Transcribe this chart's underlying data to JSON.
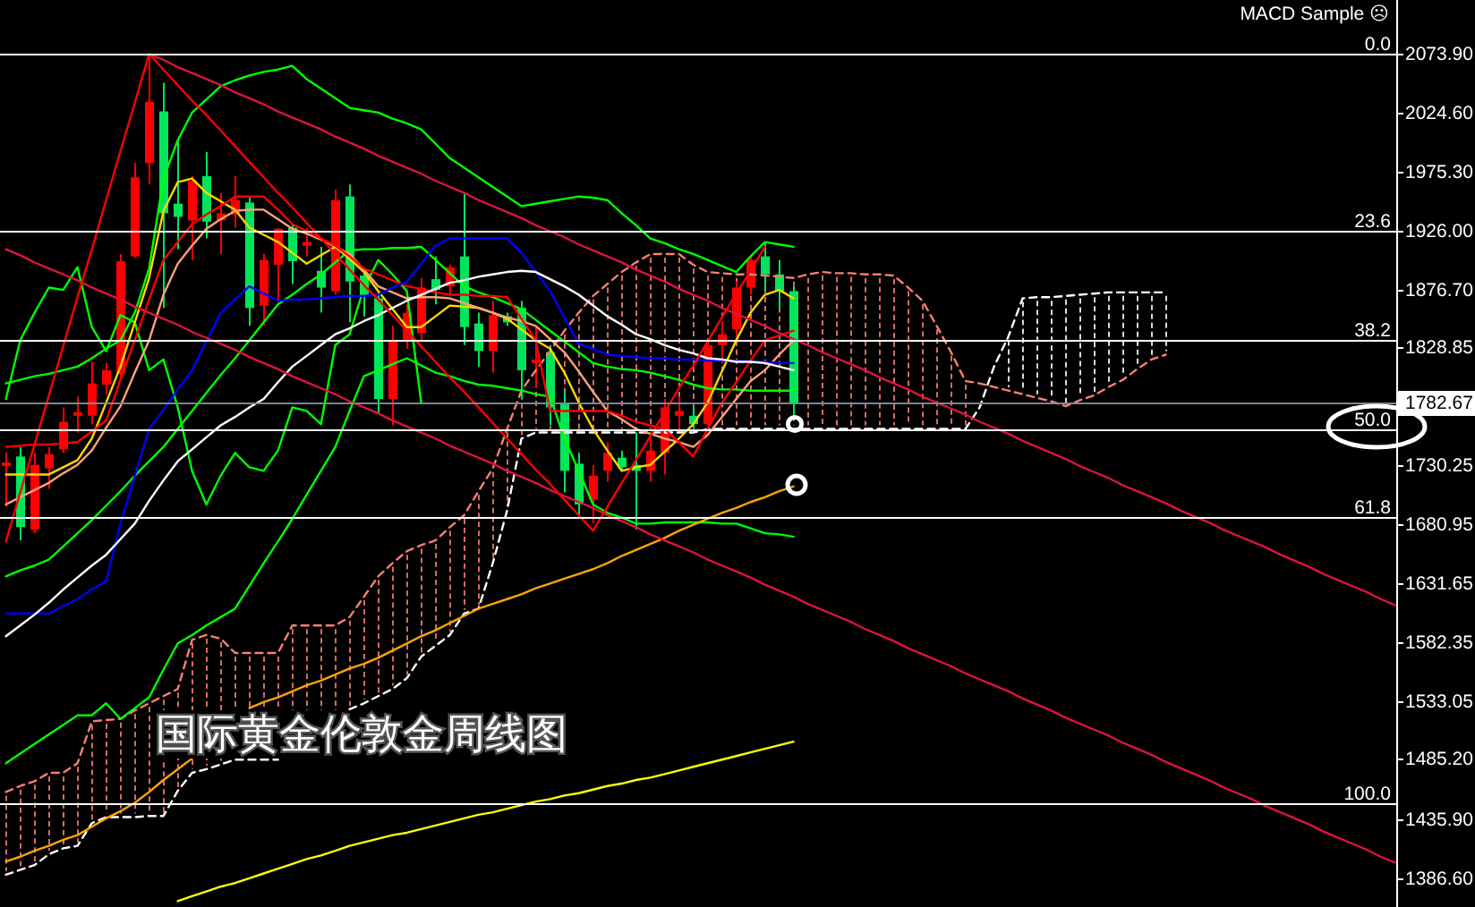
{
  "chart_data": {
    "type": "candlestick",
    "title": "国际黄金伦敦金周线图",
    "annotations": [
      "MACD Sample ☹",
      {
        "text": "0.0",
        "y": 2074
      },
      {
        "text": "23.6",
        "y": 1926
      },
      {
        "text": "38.2",
        "y": 1835
      },
      {
        "text": "50.0",
        "y": 1761
      },
      {
        "text": "61.8",
        "y": 1688
      },
      {
        "text": "100.0",
        "y": 1449
      }
    ],
    "categories": [
      null,
      null,
      null,
      null,
      null,
      null,
      null,
      null,
      null,
      null,
      null,
      null,
      null,
      null,
      null,
      null,
      null,
      null,
      null,
      null,
      null,
      null,
      null,
      null,
      null,
      null,
      null,
      null,
      null,
      null,
      null,
      null,
      null,
      null,
      null,
      null,
      null,
      null,
      null,
      null,
      null,
      null,
      null,
      null,
      null,
      null,
      null,
      null,
      null,
      null,
      null,
      null,
      null,
      null,
      null,
      null,
      null,
      null,
      null,
      null,
      null,
      null,
      null,
      null,
      null,
      null,
      null,
      null,
      null,
      null,
      null,
      null,
      null,
      null,
      null,
      null,
      null,
      null,
      null,
      null,
      null,
      null,
      null,
      null,
      null,
      null,
      null,
      null,
      null,
      null,
      null,
      null,
      null,
      null,
      null,
      null,
      null,
      null
    ],
    "ohlc": [
      [
        1730,
        1741,
        1696,
        1733
      ],
      [
        1738,
        1746,
        1668,
        1679
      ],
      [
        1677,
        1741,
        1674,
        1731
      ],
      [
        1728,
        1746,
        1711,
        1740
      ],
      [
        1744,
        1779,
        1741,
        1767
      ],
      [
        1772,
        1788,
        1758,
        1775
      ],
      [
        1772,
        1817,
        1765,
        1799
      ],
      [
        1798,
        1816,
        1790,
        1810
      ],
      [
        1807,
        1907,
        1802,
        1901
      ],
      [
        1905,
        1983,
        1904,
        1971
      ],
      [
        1983,
        2074,
        1965,
        2034
      ],
      [
        2026,
        2050,
        1862,
        1941
      ],
      [
        1949,
        2002,
        1911,
        1938
      ],
      [
        1935,
        1972,
        1902,
        1968
      ],
      [
        1972,
        1992,
        1920,
        1934
      ],
      [
        1935,
        1958,
        1907,
        1941
      ],
      [
        1940,
        1972,
        1929,
        1952
      ],
      [
        1950,
        1955,
        1847,
        1862
      ],
      [
        1864,
        1907,
        1847,
        1902
      ],
      [
        1898,
        1929,
        1868,
        1928
      ],
      [
        1929,
        1932,
        1882,
        1901
      ],
      [
        1914,
        1929,
        1905,
        1917
      ],
      [
        1893,
        1913,
        1858,
        1879
      ],
      [
        1876,
        1961,
        1873,
        1952
      ],
      [
        1955,
        1965,
        1850,
        1884
      ],
      [
        1889,
        1895,
        1855,
        1873
      ],
      [
        1870,
        1876,
        1774,
        1786
      ],
      [
        1786,
        1847,
        1764,
        1835
      ],
      [
        1835,
        1865,
        1828,
        1858
      ],
      [
        1841,
        1887,
        1835,
        1879
      ],
      [
        1886,
        1905,
        1865,
        1877
      ],
      [
        1880,
        1898,
        1873,
        1896
      ],
      [
        1905,
        1958,
        1831,
        1846
      ],
      [
        1849,
        1858,
        1813,
        1826
      ],
      [
        1826,
        1868,
        1808,
        1856
      ],
      [
        1855,
        1858,
        1847,
        1850
      ],
      [
        1862,
        1868,
        1786,
        1810
      ],
      [
        1816,
        1847,
        1795,
        1819
      ],
      [
        1825,
        1831,
        1764,
        1779
      ],
      [
        1782,
        1793,
        1708,
        1726
      ],
      [
        1732,
        1741,
        1688,
        1698
      ],
      [
        1702,
        1731,
        1682,
        1722
      ],
      [
        1726,
        1750,
        1717,
        1741
      ],
      [
        1737,
        1743,
        1726,
        1729
      ],
      [
        1731,
        1758,
        1677,
        1726
      ],
      [
        1726,
        1753,
        1717,
        1743
      ],
      [
        1741,
        1786,
        1723,
        1779
      ],
      [
        1772,
        1788,
        1758,
        1776
      ],
      [
        1772,
        1779,
        1761,
        1765
      ],
      [
        1765,
        1832,
        1764,
        1831
      ],
      [
        1831,
        1850,
        1820,
        1840
      ],
      [
        1844,
        1884,
        1835,
        1879
      ],
      [
        1879,
        1905,
        1873,
        1902
      ],
      [
        1905,
        1917,
        1876,
        1890
      ],
      [
        1890,
        1902,
        1861,
        1876
      ],
      [
        1876,
        1880,
        1771,
        1782.67
      ],
      null,
      null,
      null,
      null,
      null,
      null,
      null,
      null,
      null,
      null,
      null,
      null,
      null,
      null,
      null,
      null,
      null,
      null,
      null,
      null,
      null,
      null,
      null,
      null,
      null,
      null,
      null,
      null,
      null,
      null,
      null,
      null,
      null,
      null,
      null,
      null,
      null,
      null,
      null,
      null,
      null,
      null
    ],
    "colors": [
      "#ff0000",
      "#00e65c",
      "#ff0000",
      "#ff0000",
      "#ff0000",
      "#ff0000",
      "#ff0000",
      "#ff0000",
      "#ff0000",
      "#ff0000",
      "#ff0000",
      "#00e65c",
      "#00e65c",
      "#ff0000",
      "#00e65c",
      "#ff0000",
      "#ff0000",
      "#00e65c",
      "#ff0000",
      "#ff0000",
      "#00e65c",
      "#ff0000",
      "#00e65c",
      "#ff0000",
      "#00e65c",
      "#00e65c",
      "#00e65c",
      "#ff0000",
      "#ff0000",
      "#ff0000",
      "#00e65c",
      "#ff0000",
      "#00e65c",
      "#00e65c",
      "#ff0000",
      "#00e65c",
      "#00e65c",
      "#ff0000",
      "#00e65c",
      "#00e65c",
      "#00e65c",
      "#ff0000",
      "#ff0000",
      "#00e65c",
      "#00e65c",
      "#ff0000",
      "#ff0000",
      "#ff0000",
      "#00e65c",
      "#ff0000",
      "#ff0000",
      "#ff0000",
      "#ff0000",
      "#00e65c",
      "#00e65c",
      "#00e65c",
      null,
      null,
      null,
      null,
      null,
      null,
      null,
      null,
      null,
      null,
      null,
      null,
      null,
      null,
      null,
      null,
      null,
      null,
      null,
      null,
      null,
      null,
      null,
      null,
      null,
      null,
      null,
      null,
      null,
      null,
      null,
      null,
      null,
      null,
      null,
      null,
      null,
      null,
      null,
      null,
      null,
      null
    ],
    "series": [
      {
        "type": "line",
        "color": "#fa8072",
        "line_style": "dashed",
        "values": [
          1458,
          1463,
          1467,
          1474,
          1474,
          1482,
          1517,
          1518,
          1519,
          1526,
          1532,
          1538,
          1544,
          1585,
          1589,
          1586,
          1574,
          1574,
          1574,
          1574,
          1597,
          1597,
          1597,
          1597,
          1604,
          1621,
          1638,
          1649,
          1659,
          1664,
          1668,
          1679,
          1689,
          1709,
          1728,
          1761,
          1793,
          1810,
          1826,
          1843,
          1858,
          1872,
          1882,
          1892,
          1900,
          1907,
          1907,
          1907,
          1898,
          1892,
          1891,
          1890,
          1890,
          1889,
          1888,
          1887,
          1890,
          1892,
          1891,
          1891,
          1890,
          1890,
          1889,
          1879,
          1868,
          1847,
          1825,
          1801,
          1799,
          1796,
          1793,
          1790,
          1787,
          1784,
          1780,
          1785,
          1789,
          1796,
          1802,
          1811,
          1819,
          1823,
          null,
          null,
          null,
          null,
          null,
          null,
          null,
          null,
          null,
          null,
          null,
          null,
          null,
          null,
          null,
          null
        ]
      },
      {
        "type": "line",
        "color": "#ffffff",
        "line_style": "dashed",
        "values": [
          1389,
          1393,
          1397,
          1406,
          1411,
          1413,
          1432,
          1437,
          1437,
          1437,
          1438,
          1438,
          1459,
          1474,
          1477,
          1481,
          1485,
          1485,
          1485,
          1485,
          null,
          null,
          null,
          null,
          1527,
          1532,
          1538,
          1544,
          1553,
          1571,
          1580,
          1589,
          1607,
          1611,
          1649,
          1693,
          1753,
          1758,
          1758,
          1758,
          1758,
          1758,
          1758,
          1758,
          1758,
          1758,
          1758,
          1758,
          1758,
          1761,
          1761,
          1761,
          1761,
          1761,
          1761,
          1761,
          1761,
          1761,
          1761,
          1761,
          1761,
          1761,
          1761,
          1761,
          1761,
          1761,
          1761,
          1761,
          1779,
          1813,
          1838,
          1870,
          1871,
          1871,
          1872,
          1873,
          1874,
          1875,
          1875,
          1875,
          1875,
          1875,
          null,
          null,
          null,
          null,
          null,
          null,
          null,
          null,
          null,
          null,
          null,
          null,
          null,
          null,
          null,
          null
        ]
      },
      {
        "type": "line",
        "color": "#00ff00",
        "values": [
          1786,
          1835,
          1858,
          1879,
          1877,
          1896,
          1846,
          1826,
          1856,
          1850,
          1810,
          1819,
          1779,
          1726,
          1698,
          1722,
          1741,
          1729,
          1726,
          1743,
          1779,
          1776,
          1765,
          1831,
          1840,
          1879,
          1902,
          1890,
          1876,
          1783,
          null,
          null,
          null,
          null,
          null,
          null,
          null,
          null,
          null,
          null,
          null,
          null,
          null,
          null,
          null,
          null,
          null,
          null,
          null,
          null,
          null,
          null,
          null,
          null,
          null,
          null,
          null,
          null,
          null,
          null,
          null,
          null,
          null,
          null,
          null,
          null,
          null,
          null,
          null,
          null,
          null,
          null,
          null,
          null,
          null,
          null,
          null,
          null,
          null,
          null,
          null,
          null,
          null,
          null,
          null,
          null,
          null,
          null,
          null,
          null,
          null,
          null,
          null,
          null,
          null,
          null,
          null,
          null
        ]
      },
      {
        "type": "line",
        "color": "#00ff00",
        "values": [
          1799,
          1802,
          1805,
          1807,
          1810,
          1813,
          1820,
          1828,
          1835,
          1858,
          1895,
          1970,
          2002,
          2025,
          2036,
          2047,
          2052,
          2056,
          2059,
          2061,
          2064,
          2053,
          2045,
          2037,
          2029,
          2027,
          2025,
          2020,
          2016,
          2011,
          1999,
          1987,
          1979,
          1971,
          1963,
          1955,
          1947,
          1949,
          1951,
          1953,
          1955,
          1954,
          1952,
          1941,
          1931,
          1920,
          1916,
          1911,
          1907,
          1902,
          1897,
          1892,
          1905,
          1917,
          1915,
          1913,
          null,
          null,
          null,
          null,
          null,
          null,
          null,
          null,
          null,
          null,
          null,
          null,
          null,
          null,
          null,
          null,
          null,
          null,
          null,
          null,
          null,
          null,
          null,
          null,
          null,
          null,
          null,
          null,
          null,
          null,
          null,
          null,
          null,
          null,
          null,
          null,
          null,
          null,
          null,
          null,
          null,
          null
        ]
      },
      {
        "type": "line",
        "color": "#00ff00",
        "values": [
          1638,
          1643,
          1647,
          1652,
          1663,
          1674,
          1685,
          1697,
          1709,
          1722,
          1734,
          1746,
          1761,
          1776,
          1791,
          1806,
          1820,
          1835,
          1850,
          1865,
          1873,
          1882,
          1890,
          1900,
          1910,
          1911,
          1911,
          1912,
          1912,
          1913,
          1902,
          1891,
          1880,
          1875,
          1871,
          1866,
          1861,
          1852,
          1843,
          1834,
          1825,
          1816,
          1813,
          1811,
          1810,
          1808,
          1805,
          1802,
          1798,
          1795,
          1794,
          1794,
          1793,
          1793,
          1793,
          1793,
          null,
          null,
          null,
          null,
          null,
          null,
          null,
          null,
          null,
          null,
          null,
          null,
          null,
          null,
          null,
          null,
          null,
          null,
          null,
          null,
          null,
          null,
          null,
          null,
          null,
          null,
          null,
          null,
          null,
          null,
          null,
          null,
          null,
          null,
          null,
          null,
          null,
          null,
          null,
          null,
          null,
          null
        ]
      },
      {
        "type": "line",
        "color": "#00ff00",
        "values": [
          1482,
          1490,
          1498,
          1506,
          1514,
          1522,
          1522,
          1532,
          1519,
          1528,
          1537,
          1560,
          1582,
          1589,
          1597,
          1604,
          1611,
          1630,
          1649,
          1667,
          1686,
          1706,
          1726,
          1746,
          1776,
          1805,
          1810,
          1815,
          1820,
          1814,
          1808,
          1805,
          1801,
          1798,
          1797,
          1795,
          1793,
          1790,
          1788,
          1753,
          1726,
          1698,
          1691,
          1687,
          1682,
          1682,
          1683,
          1683,
          1683,
          1683,
          1682,
          1682,
          1678,
          1674,
          1673,
          1671,
          null,
          null,
          null,
          null,
          null,
          null,
          null,
          null,
          null,
          null,
          null,
          null,
          null,
          null,
          null,
          null,
          null,
          null,
          null,
          null,
          null,
          null,
          null,
          null,
          null,
          null,
          null,
          null,
          null,
          null,
          null,
          null,
          null,
          null,
          null,
          null,
          null,
          null,
          null,
          null,
          null,
          null
        ]
      },
      {
        "type": "line",
        "color": "#ffd700",
        "values": [
          1723,
          1723,
          1723,
          1723,
          1729,
          1735,
          1753,
          1783,
          1813,
          1850,
          1887,
          1943,
          1967,
          1970,
          1958,
          1951,
          1944,
          1929,
          1923,
          1917,
          1908,
          1899,
          1906,
          1913,
          1903,
          1892,
          1876,
          1861,
          1846,
          1846,
          1855,
          1864,
          1863,
          1862,
          1858,
          1853,
          1844,
          1835,
          1828,
          1808,
          1783,
          1761,
          1743,
          1726,
          1729,
          1731,
          1742,
          1753,
          1765,
          1783,
          1809,
          1835,
          1858,
          1873,
          1877,
          1870,
          null,
          null,
          null,
          null,
          null,
          null,
          null,
          null,
          null,
          null,
          null,
          null,
          null,
          null,
          null,
          null,
          null,
          null,
          null,
          null,
          null,
          null,
          null,
          null,
          null,
          null,
          null,
          null,
          null,
          null,
          null,
          null,
          null,
          null,
          null,
          null,
          null,
          null,
          null,
          null,
          null,
          null
        ]
      },
      {
        "type": "line",
        "color": "#ffa07a",
        "values": [
          1698,
          1704,
          1710,
          1716,
          1724,
          1731,
          1743,
          1762,
          1780,
          1808,
          1835,
          1873,
          1899,
          1914,
          1928,
          1936,
          1943,
          1944,
          1944,
          1936,
          1928,
          1924,
          1919,
          1913,
          1907,
          1894,
          1880,
          1875,
          1870,
          1871,
          1871,
          1870,
          1866,
          1862,
          1858,
          1854,
          1851,
          1847,
          1836,
          1825,
          1809,
          1792,
          1776,
          1769,
          1761,
          1757,
          1753,
          1750,
          1746,
          1756,
          1771,
          1786,
          1801,
          1810,
          1823,
          1835,
          null,
          null,
          null,
          null,
          null,
          null,
          null,
          null,
          null,
          null,
          null,
          null,
          null,
          null,
          null,
          null,
          null,
          null,
          null,
          null,
          null,
          null,
          null,
          null,
          null,
          null,
          null,
          null,
          null,
          null,
          null,
          null,
          null,
          null,
          null,
          null,
          null,
          null,
          null,
          null,
          null,
          null
        ]
      },
      {
        "type": "line",
        "color": "#ff0000",
        "values": [
          1746,
          1747,
          1748,
          1748,
          1749,
          1750,
          1759,
          1768,
          1802,
          1835,
          1869,
          1902,
          1917,
          1932,
          1940,
          1947,
          1955,
          1955,
          1955,
          1944,
          1932,
          1926,
          1920,
          1914,
          1905,
          1895,
          1890,
          1885,
          1880,
          1878,
          1875,
          1873,
          1873,
          1872,
          1872,
          1871,
          1853,
          1835,
          1776,
          1776,
          1776,
          1776,
          1776,
          1772,
          1767,
          1764,
          1761,
          1750,
          1738,
          1761,
          1783,
          1800,
          1818,
          1835,
          1839,
          1843,
          null,
          null,
          null,
          null,
          null,
          null,
          null,
          null,
          null,
          null,
          null,
          null,
          null,
          null,
          null,
          null,
          null,
          null,
          null,
          null,
          null,
          null,
          null,
          null,
          null,
          null,
          null,
          null,
          null,
          null,
          null,
          null,
          null,
          null,
          null,
          null,
          null,
          null,
          null,
          null,
          null,
          null
        ]
      },
      {
        "type": "line",
        "color": "#0000ff",
        "values": [
          1607,
          1607,
          1607,
          1607,
          1613,
          1619,
          1627,
          1634,
          1682,
          1722,
          1761,
          1777,
          1794,
          1810,
          1834,
          1858,
          1869,
          1880,
          1874,
          1868,
          1869,
          1869,
          1870,
          1871,
          1872,
          1872,
          1873,
          1879,
          1884,
          1899,
          1914,
          1920,
          1920,
          1920,
          1920,
          1920,
          1908,
          1892,
          1876,
          1854,
          1832,
          1828,
          1823,
          1822,
          1821,
          1820,
          1820,
          1819,
          1819,
          1818,
          1818,
          1818,
          1817,
          1817,
          1816,
          1816,
          null,
          null,
          null,
          null,
          null,
          null,
          null,
          null,
          null,
          null,
          null,
          null,
          null,
          null,
          null,
          null,
          null,
          null,
          null,
          null,
          null,
          null,
          null,
          null,
          null,
          null,
          null,
          null,
          null,
          null,
          null,
          null,
          null,
          null,
          null,
          null,
          null,
          null,
          null,
          null,
          null,
          null
        ]
      },
      {
        "type": "line",
        "color": "#ffffff",
        "values": [
          1588,
          1597,
          1606,
          1616,
          1627,
          1637,
          1647,
          1656,
          1669,
          1682,
          1701,
          1718,
          1734,
          1744,
          1754,
          1764,
          1771,
          1779,
          1786,
          1800,
          1813,
          1822,
          1831,
          1840,
          1845,
          1851,
          1856,
          1862,
          1868,
          1873,
          1878,
          1883,
          1885,
          1888,
          1890,
          1892,
          1893,
          1892,
          1886,
          1880,
          1873,
          1864,
          1855,
          1848,
          1840,
          1836,
          1831,
          1827,
          1824,
          1820,
          1819,
          1817,
          1817,
          1816,
          1813,
          1810,
          null,
          null,
          null,
          null,
          null,
          null,
          null,
          null,
          null,
          null,
          null,
          null,
          null,
          null,
          null,
          null,
          null,
          null,
          null,
          null,
          null,
          null,
          null,
          null,
          null,
          null,
          null,
          null,
          null,
          null,
          null,
          null,
          null,
          null,
          null,
          null,
          null,
          null,
          null,
          null,
          null,
          null
        ]
      },
      {
        "type": "line",
        "color": "#ffa500",
        "values": [
          1400,
          1404,
          1409,
          1413,
          1418,
          1422,
          1429,
          1436,
          1442,
          1449,
          1458,
          1468,
          1477,
          1486,
          null,
          null,
          null,
          1528,
          1533,
          1537,
          1542,
          1547,
          1551,
          1556,
          1561,
          1565,
          1570,
          1576,
          1582,
          1588,
          1593,
          1599,
          1605,
          1611,
          1615,
          1619,
          1623,
          1628,
          1632,
          1636,
          1640,
          1644,
          1649,
          1655,
          1660,
          1665,
          1670,
          1676,
          1681,
          1686,
          1691,
          1695,
          1700,
          1704,
          1709,
          1713,
          null,
          null,
          null,
          null,
          null,
          null,
          null,
          null,
          null,
          null,
          null,
          null,
          null,
          null,
          null,
          null,
          null,
          null,
          null,
          null,
          null,
          null,
          null,
          null,
          null,
          null,
          null,
          null,
          null,
          null,
          null,
          null,
          null,
          null,
          null,
          null,
          null,
          null,
          null,
          null,
          null,
          null
        ]
      },
      {
        "type": "line",
        "color": "#ffff00",
        "values": [
          null,
          null,
          null,
          null,
          null,
          null,
          null,
          null,
          null,
          null,
          null,
          null,
          1367,
          1371,
          1375,
          1379,
          1382,
          1386,
          1390,
          1394,
          1398,
          1402,
          1405,
          1409,
          1413,
          1416,
          1419,
          1422,
          1424,
          1427,
          1430,
          1433,
          1436,
          1439,
          1441,
          1444,
          1447,
          1450,
          1452,
          1455,
          1457,
          1460,
          1463,
          1465,
          1468,
          1470,
          1473,
          1476,
          1479,
          1482,
          1485,
          1488,
          1491,
          1494,
          1497,
          1500,
          null,
          null,
          null,
          null,
          null,
          null,
          null,
          null,
          null,
          null,
          null,
          null,
          null,
          null,
          null,
          null,
          null,
          null,
          null,
          null,
          null,
          null,
          null,
          null,
          null,
          null,
          null,
          null,
          null,
          null,
          null,
          null,
          null,
          null,
          null,
          null,
          null,
          null,
          null,
          null,
          null,
          null
        ]
      },
      {
        "type": "line",
        "color": "#dc143c",
        "values": [
          null,
          null,
          null,
          null,
          null,
          null,
          null,
          null,
          null,
          null,
          2074,
          2069,
          2063,
          2058,
          2053,
          2048,
          2042,
          2037,
          2032,
          2026,
          2021,
          2016,
          2011,
          2005,
          2000,
          1995,
          1989,
          1984,
          1979,
          1974,
          1968,
          1963,
          1958,
          1952,
          1947,
          1942,
          1937,
          1931,
          1926,
          1921,
          1915,
          1910,
          1905,
          1900,
          1894,
          1889,
          1884,
          1878,
          1873,
          1868,
          1862,
          1857,
          1852,
          1847,
          1841,
          1836,
          1831,
          1825,
          1820,
          1815,
          1810,
          1804,
          1799,
          1794,
          1788,
          1783,
          1778,
          1773,
          1767,
          1762,
          1757,
          1751,
          1746,
          1741,
          1736,
          1730,
          1725,
          1720,
          1714,
          1709,
          1704,
          1699,
          1693,
          1688,
          1683,
          1677,
          1672,
          1667,
          1662,
          1656,
          1651,
          1646,
          1640,
          1635,
          1630,
          1625,
          1619,
          1614
        ]
      },
      {
        "type": "line",
        "color": "#dc143c",
        "values": [
          1911,
          1906,
          1900,
          1895,
          1890,
          1885,
          1879,
          1874,
          1869,
          1863,
          1858,
          1853,
          1848,
          1842,
          1837,
          1832,
          1827,
          1821,
          1816,
          1811,
          1805,
          1800,
          1795,
          1790,
          1784,
          1779,
          1774,
          1768,
          1763,
          1758,
          1753,
          1747,
          1742,
          1737,
          1732,
          1726,
          1721,
          1716,
          1710,
          1705,
          1700,
          1695,
          1689,
          1684,
          1679,
          1673,
          1668,
          1663,
          1658,
          1652,
          1647,
          1642,
          1637,
          1631,
          1626,
          1621,
          1615,
          1610,
          1605,
          1600,
          1594,
          1589,
          1584,
          1578,
          1573,
          1568,
          1563,
          1557,
          1552,
          1547,
          1542,
          1536,
          1531,
          1526,
          1520,
          1515,
          1510,
          1505,
          1499,
          1494,
          1489,
          1483,
          1478,
          1473,
          1468,
          1462,
          1457,
          1452,
          1446,
          1441,
          1436,
          1431,
          1425,
          1420,
          1415,
          1410,
          1404,
          1399
        ]
      },
      {
        "type": "line",
        "color": "#ff0000",
        "values": [
          1667,
          1708,
          1748,
          1789,
          1830,
          1871,
          1911,
          1952,
          1993,
          2033,
          2074,
          2061,
          2048,
          2035,
          2023,
          2010,
          1997,
          1984,
          1971,
          1958,
          1946,
          1933,
          1920,
          1907,
          1894,
          1881,
          1869,
          1856,
          1843,
          1830,
          1817,
          1804,
          1792,
          1779,
          1766,
          1753,
          1740,
          1727,
          1715,
          1702,
          1689,
          1676,
          1696,
          1716,
          1735,
          1755,
          1775,
          1795,
          1814,
          1834,
          1854,
          1874,
          1893,
          1913,
          null,
          null,
          null,
          null,
          null,
          null,
          null,
          null,
          null,
          null,
          null,
          null,
          null,
          null,
          null,
          null,
          null,
          null,
          null,
          null,
          null,
          null,
          null,
          null,
          null,
          null,
          null,
          null,
          null,
          null,
          null,
          null,
          null,
          null,
          null,
          null,
          null,
          null,
          null,
          null,
          null,
          null,
          null,
          null
        ]
      }
    ],
    "ylim": [
      1362,
      2119
    ],
    "yticks": [
      {
        "value": 2073.9,
        "label": "2073.90"
      },
      {
        "value": 2024.6,
        "label": "2024.60"
      },
      {
        "value": 1975.3,
        "label": "1975.30"
      },
      {
        "value": 1926,
        "label": "1926.00"
      },
      {
        "value": 1876.7,
        "label": "1876.70"
      },
      {
        "value": 1828.85,
        "label": "1828.85"
      },
      {
        "value": 1730.25,
        "label": "1730.25"
      },
      {
        "value": 1680.95,
        "label": "1680.95"
      },
      {
        "value": 1631.65,
        "label": "1631.65"
      },
      {
        "value": 1582.35,
        "label": "1582.35"
      },
      {
        "value": 1533.05,
        "label": "1533.05"
      },
      {
        "value": 1485.2,
        "label": "1485.20"
      },
      {
        "value": 1435.9,
        "label": "1435.90"
      },
      {
        "value": 1386.6,
        "label": "1386.60"
      }
    ],
    "ref_lines": [
      {
        "axis": "y",
        "value": 1782.67,
        "label": "1782.67",
        "color": "#778899"
      },
      {
        "axis": "y",
        "value": 2074,
        "color": "#ffffff"
      },
      {
        "axis": "y",
        "value": 1926,
        "color": "#ffffff"
      },
      {
        "axis": "y",
        "value": 1835,
        "color": "#ffffff"
      },
      {
        "axis": "y",
        "value": 1761,
        "color": "#ffffff"
      },
      {
        "axis": "y",
        "value": 1688,
        "color": "#ffffff"
      },
      {
        "axis": "y",
        "value": 1449,
        "color": "#ffffff"
      }
    ],
    "tick_labels": "y"
  }
}
